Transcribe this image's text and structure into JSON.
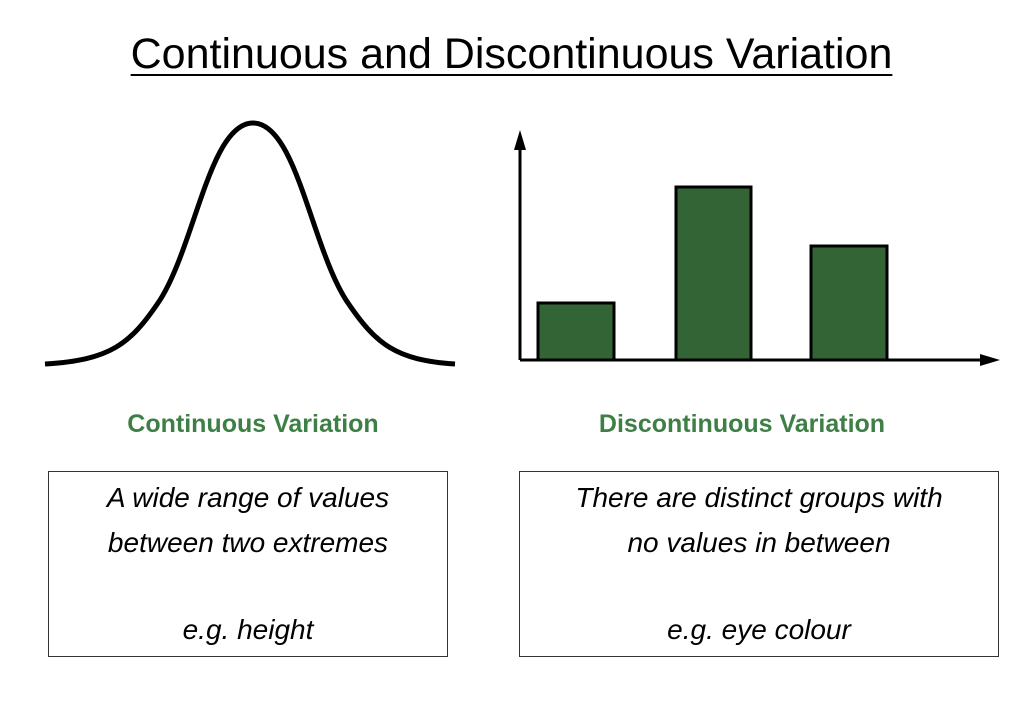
{
  "title": "Continuous and Discontinuous Variation",
  "panels": [
    {
      "label": "Continuous Variation",
      "description": [
        "A wide range of values",
        "between two extremes"
      ],
      "example": "e.g. height"
    },
    {
      "label": "Discontinuous Variation",
      "description": [
        "There are distinct groups with",
        "no values in between"
      ],
      "example": "e.g. eye colour"
    }
  ]
}
